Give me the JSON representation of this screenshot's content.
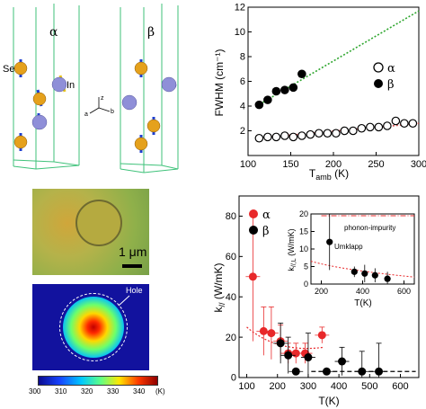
{
  "crystal": {
    "alpha_label": "α",
    "beta_label": "β",
    "se_label": "Se",
    "in_label": "In",
    "axis_a": "a",
    "axis_b": "b",
    "axis_z": "z"
  },
  "micrograph": {
    "scalebar_label": "1 μm"
  },
  "heatmap": {
    "hole_label": "Hole",
    "colorbar_ticks": [
      "300",
      "310",
      "320",
      "330",
      "340"
    ],
    "colorbar_unit": "(K)"
  },
  "colors": {
    "alpha": "#e8282a",
    "beta": "#000000",
    "se_atom": "#e5a11c",
    "in_atom": "#8f8fd8",
    "fit_line": "#2ea62e"
  },
  "chart_data": [
    {
      "type": "scatter",
      "ylabel": "FWHM (cm⁻¹)",
      "xlabel": "T_amb (K)",
      "xlim": [
        100,
        300
      ],
      "ylim": [
        0,
        12
      ],
      "xticks": [
        100,
        150,
        200,
        250,
        300
      ],
      "yticks": [
        2,
        4,
        6,
        8,
        10,
        12
      ],
      "legend": {
        "placement": "middle-right",
        "entries": [
          "α",
          "β"
        ]
      },
      "series": [
        {
          "name": "α",
          "marker": "open-circle",
          "x": [
            113,
            123,
            133,
            143,
            153,
            163,
            173,
            183,
            193,
            203,
            213,
            223,
            233,
            243,
            253,
            263,
            273,
            283,
            293
          ],
          "y": [
            1.4,
            1.5,
            1.5,
            1.6,
            1.5,
            1.6,
            1.7,
            1.8,
            1.8,
            1.8,
            2.0,
            2.0,
            2.2,
            2.3,
            2.3,
            2.4,
            2.8,
            2.6,
            2.6
          ]
        },
        {
          "name": "β",
          "marker": "filled-circle",
          "x": [
            113,
            123,
            133,
            143,
            153,
            163
          ],
          "y": [
            4.1,
            4.5,
            5.2,
            5.3,
            5.5,
            6.6
          ]
        },
        {
          "name": "",
          "style": "dotted-fit",
          "x": [
            110,
            300
          ],
          "y": [
            4.0,
            11.7
          ]
        },
        {
          "name": "",
          "style": "dotted-fit",
          "x": [
            110,
            300
          ],
          "y": [
            1.4,
            2.6
          ]
        }
      ]
    },
    {
      "type": "scatter",
      "ylabel": "k// (W/mK)",
      "xlabel": "T(K)",
      "xlim": [
        75,
        660
      ],
      "ylim": [
        0,
        90
      ],
      "xticks": [
        100,
        200,
        300,
        400,
        500,
        600
      ],
      "yticks": [
        0,
        20,
        40,
        60,
        80
      ],
      "legend": {
        "placement": "top-left",
        "entries": [
          "α",
          "β"
        ]
      },
      "series": [
        {
          "name": "α",
          "marker": "filled-circle",
          "x": [
            120,
            155,
            180,
            210,
            235,
            260,
            290,
            345
          ],
          "y": [
            50,
            23,
            22,
            18,
            12,
            12,
            12,
            21
          ],
          "yerr": [
            32,
            12,
            13,
            8,
            5,
            5,
            5,
            4
          ]
        },
        {
          "name": "β",
          "marker": "filled-circle",
          "x": [
            210,
            235,
            260,
            300,
            360,
            410,
            475,
            530
          ],
          "y": [
            17,
            11,
            3,
            10,
            3,
            8,
            3,
            3
          ],
          "yerr": [
            10,
            9,
            1,
            12,
            1,
            7,
            10,
            14
          ]
        }
      ],
      "inset": {
        "type": "scatter",
        "ylabel": "k//,L (W/mK)",
        "xlabel": "T(K)",
        "xlim": [
          150,
          650
        ],
        "ylim": [
          0,
          20
        ],
        "xticks": [
          200,
          400,
          600
        ],
        "yticks": [
          0,
          5,
          10,
          15,
          20
        ],
        "annotations": [
          "phonon-impurity",
          "Umklapp"
        ],
        "series": [
          {
            "name": "β",
            "marker": "filled-circle",
            "x": [
              240,
              360,
              410,
              460,
              520
            ],
            "y": [
              12,
              3.5,
              3,
              2.5,
              1.5
            ],
            "yerr": [
              8,
              1.5,
              2.5,
              2,
              2
            ]
          }
        ]
      }
    }
  ]
}
